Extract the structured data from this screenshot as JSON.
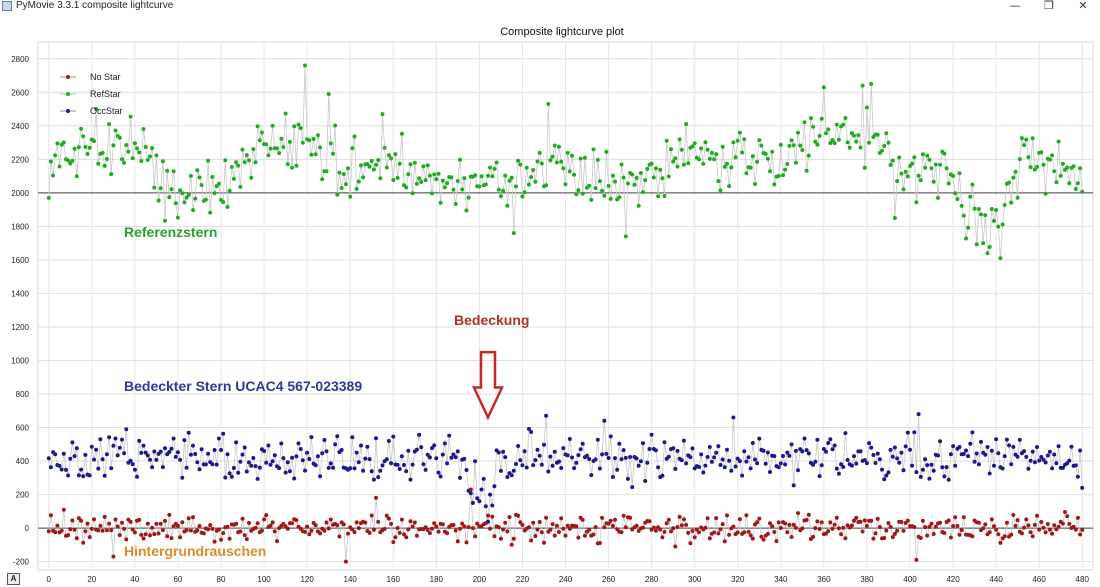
{
  "window": {
    "title": "PyMovie 3.3.1 composite lightcurve",
    "minimize_icon": "minimize-icon",
    "maximize_icon": "restore-icon",
    "close_icon": "close-icon"
  },
  "corner_button": {
    "label": "A"
  },
  "chart_data": {
    "type": "scatter",
    "title": "Composite lightcurve plot",
    "xlabel": "",
    "ylabel": "",
    "xlim": [
      -5,
      485
    ],
    "ylim": [
      -250,
      2900
    ],
    "x_ticks": [
      0,
      20,
      40,
      60,
      80,
      100,
      120,
      140,
      160,
      180,
      200,
      220,
      240,
      260,
      280,
      300,
      320,
      340,
      360,
      380,
      400,
      420,
      440,
      460,
      480
    ],
    "y_ticks": [
      -200,
      0,
      200,
      400,
      600,
      800,
      1000,
      1200,
      1400,
      1600,
      1800,
      2000,
      2200,
      2400,
      2600,
      2800
    ],
    "grid": true,
    "legend_position": "top-left",
    "legend": [
      {
        "name": "No Star",
        "color": "#a01818"
      },
      {
        "name": "RefStar",
        "color": "#22aa22"
      },
      {
        "name": "OccStar",
        "color": "#1a1a8c"
      }
    ],
    "reference_lines": [
      {
        "y": 2000,
        "color": "#444444"
      },
      {
        "y": 0,
        "color": "#444444"
      }
    ],
    "connector_color": "#c8c8c8",
    "series": [
      {
        "name": "RefStar",
        "color": "#22aa22",
        "x_start": 0,
        "x_end": 480,
        "anchors": [
          [
            0,
            2180
          ],
          [
            20,
            2280
          ],
          [
            40,
            2320
          ],
          [
            60,
            1950
          ],
          [
            80,
            2050
          ],
          [
            100,
            2260
          ],
          [
            120,
            2300
          ],
          [
            140,
            2100
          ],
          [
            160,
            2180
          ],
          [
            180,
            2050
          ],
          [
            200,
            2030
          ],
          [
            220,
            2060
          ],
          [
            240,
            2150
          ],
          [
            260,
            2100
          ],
          [
            280,
            2130
          ],
          [
            300,
            2300
          ],
          [
            320,
            2180
          ],
          [
            340,
            2200
          ],
          [
            360,
            2320
          ],
          [
            380,
            2340
          ],
          [
            400,
            2100
          ],
          [
            420,
            2100
          ],
          [
            430,
            1850
          ],
          [
            440,
            1780
          ],
          [
            450,
            2150
          ],
          [
            460,
            2250
          ],
          [
            480,
            2100
          ]
        ],
        "spread": 160,
        "spikes": [
          [
            0,
            1970
          ],
          [
            22,
            2500
          ],
          [
            119,
            2760
          ],
          [
            130,
            2590
          ],
          [
            155,
            2470
          ],
          [
            216,
            1760
          ],
          [
            232,
            2530
          ],
          [
            268,
            1740
          ],
          [
            360,
            2630
          ],
          [
            378,
            2640
          ],
          [
            382,
            2650
          ],
          [
            390,
            2300
          ],
          [
            393,
            1850
          ],
          [
            436,
            1640
          ],
          [
            442,
            1610
          ],
          [
            434,
            1700
          ]
        ]
      },
      {
        "name": "OccStar",
        "color": "#1a1a8c",
        "x_start": 0,
        "x_end": 480,
        "anchors": [
          [
            0,
            400
          ],
          [
            40,
            430
          ],
          [
            80,
            430
          ],
          [
            120,
            420
          ],
          [
            160,
            420
          ],
          [
            190,
            400
          ],
          [
            196,
            250
          ],
          [
            200,
            200
          ],
          [
            206,
            170
          ],
          [
            208,
            380
          ],
          [
            220,
            420
          ],
          [
            260,
            430
          ],
          [
            300,
            430
          ],
          [
            340,
            430
          ],
          [
            380,
            420
          ],
          [
            420,
            420
          ],
          [
            460,
            420
          ],
          [
            480,
            410
          ]
        ],
        "spread": 120,
        "spikes": [
          [
            197,
            150
          ],
          [
            200,
            160
          ],
          [
            203,
            130
          ],
          [
            205,
            200
          ],
          [
            201,
            230
          ],
          [
            231,
            670
          ],
          [
            258,
            640
          ],
          [
            318,
            660
          ],
          [
            404,
            680
          ],
          [
            480,
            240
          ]
        ]
      },
      {
        "name": "No Star",
        "color": "#a01818",
        "x_start": 0,
        "x_end": 480,
        "anchors": [
          [
            0,
            0
          ],
          [
            480,
            0
          ]
        ],
        "spread": 70,
        "spikes": [
          [
            7,
            110
          ],
          [
            30,
            -170
          ],
          [
            138,
            -200
          ],
          [
            152,
            180
          ],
          [
            196,
            230
          ],
          [
            403,
            -190
          ]
        ]
      }
    ],
    "annotations": [
      {
        "text": "Referenzstern",
        "color": "#2ca02c"
      },
      {
        "text": "Bedeckung",
        "color": "#b03030"
      },
      {
        "text": "Bedeckter Stern UCAC4 567-023389",
        "color": "#2e3a9a"
      },
      {
        "text": "Hintergrundrauschen",
        "color": "#e08a2a"
      }
    ],
    "occultation_arrow": {
      "x": 204,
      "y_top": 1050,
      "y_bottom": 660,
      "color": "#c62828"
    }
  }
}
